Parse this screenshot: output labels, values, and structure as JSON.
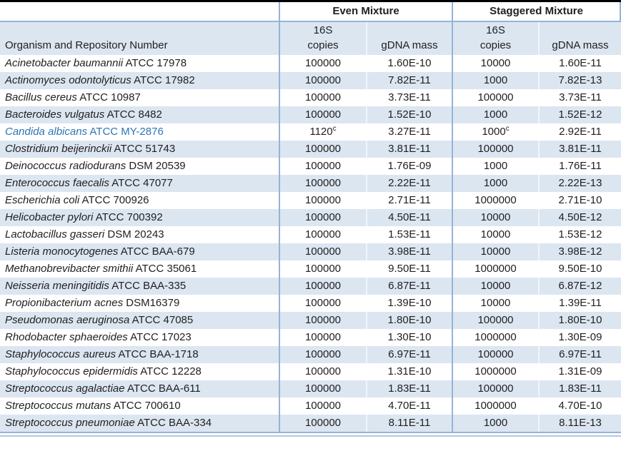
{
  "colors": {
    "accent_line": "#95b3d7",
    "alt_row_bg": "#dce6f1",
    "highlight_text": "#2e75b6",
    "top_border": "#000000",
    "bottom_outer_line": "#b3c6de",
    "text": "#1f1f1f"
  },
  "table": {
    "group_headers": {
      "even": "Even Mixture",
      "staggered": "Staggered Mixture"
    },
    "column_headers": {
      "organism": "Organism and Repository Number",
      "copies_top": "16S",
      "copies_bottom": "copies",
      "gdna": "gDNA mass"
    },
    "rows": [
      {
        "organism": "Acinetobacter baumannii",
        "strain": "ATCC 17978",
        "even_copies": "100000",
        "even_gdna": "1.60E-10",
        "stag_copies": "10000",
        "stag_gdna": "1.60E-11"
      },
      {
        "organism": "Actinomyces odontolyticus",
        "strain": "ATCC 17982",
        "even_copies": "100000",
        "even_gdna": "7.82E-11",
        "stag_copies": "1000",
        "stag_gdna": "7.82E-13"
      },
      {
        "organism": "Bacillus cereus",
        "strain": "ATCC 10987",
        "even_copies": "100000",
        "even_gdna": "3.73E-11",
        "stag_copies": "100000",
        "stag_gdna": "3.73E-11"
      },
      {
        "organism": "Bacteroides vulgatus",
        "strain": "ATCC 8482",
        "even_copies": "100000",
        "even_gdna": "1.52E-10",
        "stag_copies": "1000",
        "stag_gdna": "1.52E-12"
      },
      {
        "organism": "Candida albicans",
        "strain": "ATCC MY-2876",
        "highlight": true,
        "even_copies": "1120",
        "even_copies_sup": "c",
        "even_gdna": "3.27E-11",
        "stag_copies": "1000",
        "stag_copies_sup": "c",
        "stag_gdna": "2.92E-11"
      },
      {
        "organism": "Clostridium beijerinckii",
        "strain": "ATCC 51743",
        "even_copies": "100000",
        "even_gdna": "3.81E-11",
        "stag_copies": "100000",
        "stag_gdna": "3.81E-11"
      },
      {
        "organism": "Deinococcus radiodurans",
        "strain": "DSM 20539",
        "even_copies": "100000",
        "even_gdna": "1.76E-09",
        "stag_copies": "1000",
        "stag_gdna": "1.76E-11"
      },
      {
        "organism": "Enterococcus faecalis",
        "strain": "ATCC 47077",
        "even_copies": "100000",
        "even_gdna": "2.22E-11",
        "stag_copies": "1000",
        "stag_gdna": "2.22E-13"
      },
      {
        "organism": "Escherichia coli",
        "strain": "ATCC 700926",
        "even_copies": "100000",
        "even_gdna": "2.71E-11",
        "stag_copies": "1000000",
        "stag_gdna": "2.71E-10"
      },
      {
        "organism": "Helicobacter pylori",
        "strain": "ATCC 700392",
        "even_copies": "100000",
        "even_gdna": "4.50E-11",
        "stag_copies": "10000",
        "stag_gdna": "4.50E-12"
      },
      {
        "organism": "Lactobacillus gasseri",
        "strain": "DSM 20243",
        "even_copies": "100000",
        "even_gdna": "1.53E-11",
        "stag_copies": "10000",
        "stag_gdna": "1.53E-12"
      },
      {
        "organism": "Listeria monocytogenes",
        "strain": "ATCC BAA-679",
        "even_copies": "100000",
        "even_gdna": "3.98E-11",
        "stag_copies": "10000",
        "stag_gdna": "3.98E-12"
      },
      {
        "organism": "Methanobrevibacter smithii",
        "strain": "ATCC 35061",
        "even_copies": "100000",
        "even_gdna": "9.50E-11",
        "stag_copies": "1000000",
        "stag_gdna": "9.50E-10"
      },
      {
        "organism": "Neisseria meningitidis",
        "strain": "ATCC BAA-335",
        "even_copies": "100000",
        "even_gdna": "6.87E-11",
        "stag_copies": "10000",
        "stag_gdna": "6.87E-12"
      },
      {
        "organism": "Propionibacterium acnes",
        "strain": "DSM16379",
        "even_copies": "100000",
        "even_gdna": "1.39E-10",
        "stag_copies": "10000",
        "stag_gdna": "1.39E-11"
      },
      {
        "organism": "Pseudomonas aeruginosa",
        "strain": "ATCC 47085",
        "even_copies": "100000",
        "even_gdna": "1.80E-10",
        "stag_copies": "100000",
        "stag_gdna": "1.80E-10"
      },
      {
        "organism": "Rhodobacter sphaeroides",
        "strain": "ATCC 17023",
        "even_copies": "100000",
        "even_gdna": "1.30E-10",
        "stag_copies": "1000000",
        "stag_gdna": "1.30E-09"
      },
      {
        "organism": "Staphylococcus aureus",
        "strain": "ATCC BAA-1718",
        "even_copies": "100000",
        "even_gdna": "6.97E-11",
        "stag_copies": "100000",
        "stag_gdna": "6.97E-11"
      },
      {
        "organism": "Staphylococcus epidermidis",
        "strain": "ATCC 12228",
        "even_copies": "100000",
        "even_gdna": "1.31E-10",
        "stag_copies": "1000000",
        "stag_gdna": "1.31E-09"
      },
      {
        "organism": "Streptococcus agalactiae",
        "strain": "ATCC BAA-611",
        "even_copies": "100000",
        "even_gdna": "1.83E-11",
        "stag_copies": "100000",
        "stag_gdna": "1.83E-11"
      },
      {
        "organism": "Streptococcus mutans",
        "strain": "ATCC 700610",
        "even_copies": "100000",
        "even_gdna": "4.70E-11",
        "stag_copies": "1000000",
        "stag_gdna": "4.70E-10"
      },
      {
        "organism": "Streptococcus pneumoniae",
        "strain": "ATCC BAA-334",
        "even_copies": "100000",
        "even_gdna": "8.11E-11",
        "stag_copies": "1000",
        "stag_gdna": "8.11E-13"
      }
    ]
  }
}
